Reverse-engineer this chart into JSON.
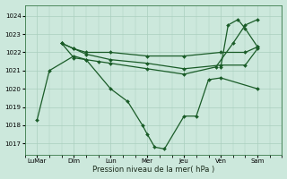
{
  "xlabel": "Pression niveau de la mer( hPa )",
  "bg_color": "#cce8dc",
  "line_color": "#1a5c28",
  "grid_color": "#aacfbe",
  "yticks": [
    1017,
    1018,
    1019,
    1020,
    1021,
    1022,
    1023,
    1024
  ],
  "ylim": [
    1016.4,
    1024.6
  ],
  "xtick_labels": [
    "LuMar",
    "Dim",
    "Lun",
    "Mer",
    "Jeu",
    "Ven",
    "Sam"
  ],
  "xtick_positions": [
    0.5,
    2.0,
    3.5,
    5.0,
    6.5,
    8.0,
    9.5
  ],
  "xlim": [
    0.0,
    10.5
  ],
  "lines": [
    {
      "x": [
        0.5,
        1.0,
        2.0,
        2.5,
        3.5,
        4.2,
        4.8,
        5.0,
        5.3,
        5.7,
        6.5,
        7.0,
        7.5,
        8.0,
        9.5
      ],
      "y": [
        1018.3,
        1021.0,
        1021.8,
        1021.6,
        1020.0,
        1019.3,
        1018.0,
        1017.5,
        1016.8,
        1016.7,
        1018.5,
        1018.5,
        1020.5,
        1020.6,
        1020.0
      ]
    },
    {
      "x": [
        1.5,
        2.0,
        2.5,
        3.5,
        5.0,
        6.5,
        8.0,
        9.0,
        9.5
      ],
      "y": [
        1022.5,
        1022.2,
        1022.0,
        1022.0,
        1021.8,
        1021.8,
        1022.0,
        1022.0,
        1022.3
      ]
    },
    {
      "x": [
        1.5,
        2.0,
        2.5,
        3.5,
        5.0,
        6.5,
        8.0,
        9.0,
        9.5
      ],
      "y": [
        1022.5,
        1022.2,
        1021.9,
        1021.6,
        1021.4,
        1021.1,
        1021.3,
        1021.3,
        1022.2
      ]
    },
    {
      "x": [
        1.5,
        2.0,
        2.5,
        3.0,
        3.5,
        5.0,
        6.5,
        7.8,
        8.5,
        9.0,
        9.5
      ],
      "y": [
        1022.5,
        1021.7,
        1021.6,
        1021.5,
        1021.4,
        1021.1,
        1020.8,
        1021.2,
        1022.5,
        1023.5,
        1023.8
      ]
    },
    {
      "x": [
        8.0,
        8.3,
        8.7,
        9.0,
        9.5
      ],
      "y": [
        1021.2,
        1023.5,
        1023.8,
        1023.3,
        1022.3
      ]
    }
  ]
}
